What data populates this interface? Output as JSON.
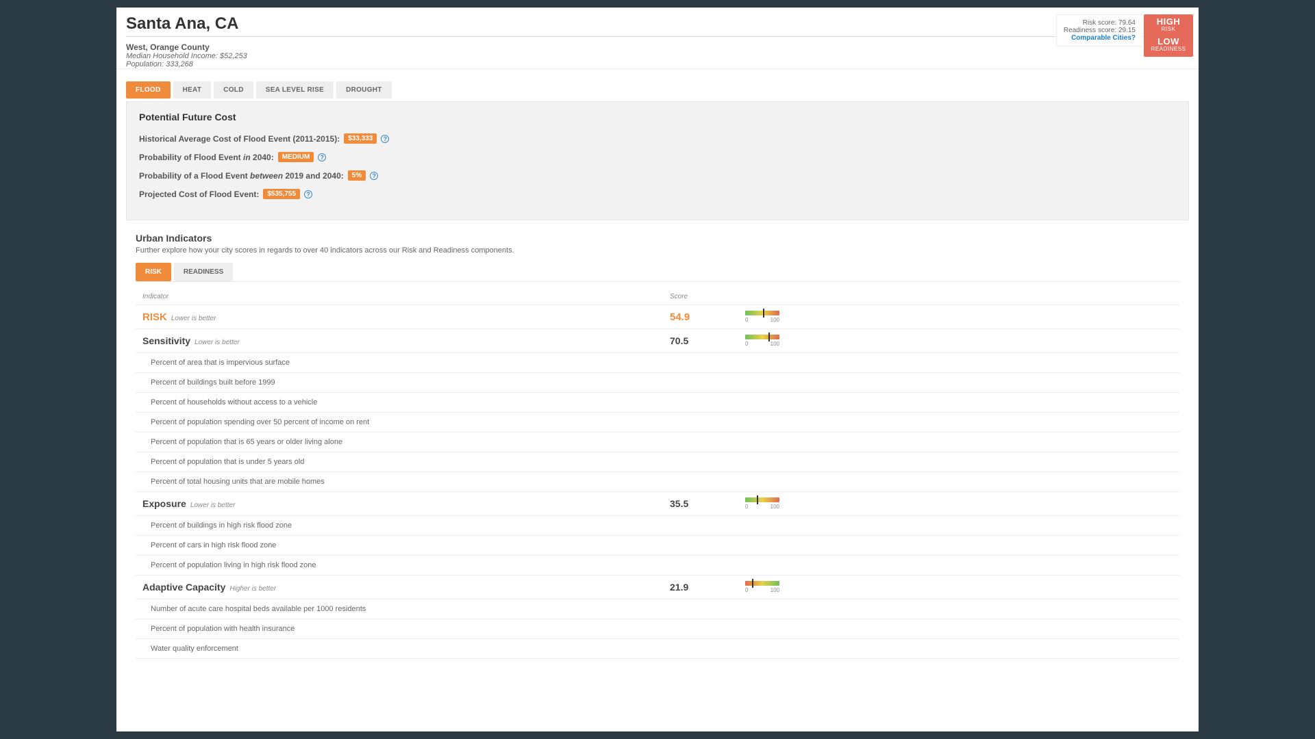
{
  "header": {
    "city": "Santa Ana, CA",
    "region": "West, Orange County",
    "income_label": "Median Household Income:",
    "income_value": "$52,253",
    "pop_label": "Population:",
    "pop_value": "333,268"
  },
  "scores": {
    "risk_label": "Risk score:",
    "risk_value": "79.64",
    "readiness_label": "Readiness score:",
    "readiness_value": "29.15",
    "comparable": "Comparable Cities?",
    "badge_risk_big": "HIGH",
    "badge_risk_small": "RISK",
    "badge_ready_big": "LOW",
    "badge_ready_small": "READINESS",
    "badge_color": "#e56a5a"
  },
  "tabs": [
    "FLOOD",
    "HEAT",
    "COLD",
    "SEA LEVEL RISE",
    "DROUGHT"
  ],
  "active_tab": 0,
  "panel": {
    "title": "Potential Future Cost",
    "rows": [
      {
        "label": "Historical Average Cost of Flood Event (2011-2015):",
        "pill": "$33,333"
      },
      {
        "label_pre": "Probability of Flood Event ",
        "em": "in",
        "label_post": " 2040:",
        "pill": "MEDIUM"
      },
      {
        "label_pre": "Probability of a Flood Event ",
        "em": "between",
        "label_post": " 2019 and 2040:",
        "pill": "5%"
      },
      {
        "label": "Projected Cost of Flood Event:",
        "pill": "$535,755"
      }
    ]
  },
  "indicators": {
    "title": "Urban Indicators",
    "desc": "Further explore how your city scores in regards to over 40 indicators across our Risk and Readiness components.",
    "subtabs": [
      "RISK",
      "READINESS"
    ],
    "active_subtab": 0,
    "cols": {
      "indicator": "Indicator",
      "score": "Score"
    },
    "gauge_min": "0",
    "gauge_max": "100",
    "risk_row": {
      "name": "RISK",
      "hint": "Lower is better",
      "score": "54.9",
      "tick": 54.9,
      "dir": "low"
    },
    "groups": [
      {
        "name": "Sensitivity",
        "hint": "Lower is better",
        "score": "70.5",
        "tick": 70.5,
        "dir": "low",
        "items": [
          "Percent of area that is impervious surface",
          "Percent of buildings built before 1999",
          "Percent of households without access to a vehicle",
          "Percent of population spending over 50 percent of income on rent",
          "Percent of population that is 65 years or older living alone",
          "Percent of population that is under 5 years old",
          "Percent of total housing units that are mobile homes"
        ]
      },
      {
        "name": "Exposure",
        "hint": "Lower is better",
        "score": "35.5",
        "tick": 35.5,
        "dir": "low",
        "items": [
          "Percent of buildings in high risk flood zone",
          "Percent of cars in high risk flood zone",
          "Percent of population living in high risk flood zone"
        ]
      },
      {
        "name": "Adaptive Capacity",
        "hint": "Higher is better",
        "score": "21.9",
        "tick": 21.9,
        "dir": "high",
        "items": [
          "Number of acute care hospital beds available per 1000 residents",
          "Percent of population with health insurance",
          "Water quality enforcement"
        ]
      }
    ]
  },
  "colors": {
    "accent": "#f08b3c",
    "link": "#1a80c9"
  }
}
